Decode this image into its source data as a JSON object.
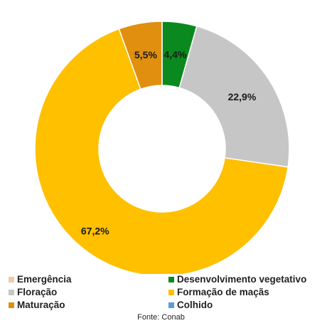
{
  "chart_data": {
    "type": "pie",
    "donut": true,
    "title": "",
    "categories": [
      "Emergência",
      "Desenvolvimento vegetativo",
      "Floração",
      "Formação de maçãs",
      "Maturação",
      "Colhido"
    ],
    "values": [
      0,
      4.4,
      22.9,
      67.2,
      5.5,
      0
    ],
    "labels": [
      "",
      "4,4%",
      "22,9%",
      "67,2%",
      "5,5%",
      ""
    ],
    "colors": [
      "#f2c9a8",
      "#0a8a1e",
      "#c6c6c6",
      "#ffc000",
      "#e0900e",
      "#5b9bd5"
    ],
    "legend_position": "bottom"
  },
  "legend": [
    {
      "label": "Emergência",
      "color": "#f2c9a8"
    },
    {
      "label": "Desenvolvimento vegetativo",
      "color": "#0a8a1e"
    },
    {
      "label": "Floração",
      "color": "#c6c6c6"
    },
    {
      "label": "Formação de maçãs",
      "color": "#ffc000"
    },
    {
      "label": "Maturação",
      "color": "#e0900e"
    },
    {
      "label": "Colhido",
      "color": "#5b9bd5"
    }
  ],
  "source": "Fonte: Conab"
}
